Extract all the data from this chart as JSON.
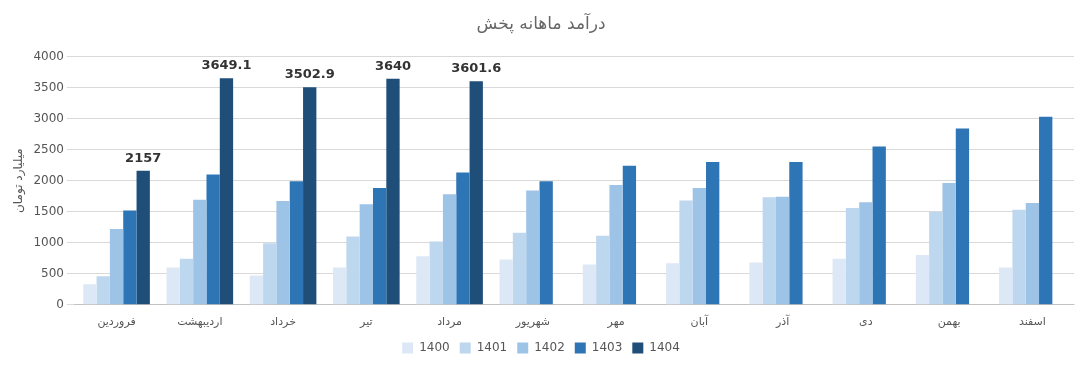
{
  "chart_data": {
    "type": "bar",
    "title": "درآمد ماهانه پخش",
    "ylabel": "میلیارد تومان",
    "categories": [
      "فروردین",
      "اردیبهشت",
      "خرداد",
      "تیر",
      "مرداد",
      "شهریور",
      "مهر",
      "آبان",
      "آذر",
      "دی",
      "بهمن",
      "اسفند"
    ],
    "series": [
      {
        "name": "1400",
        "color": "#dde8f6",
        "values": [
          330,
          600,
          470,
          600,
          780,
          730,
          650,
          670,
          680,
          740,
          800,
          600
        ]
      },
      {
        "name": "1401",
        "color": "#bdd7ee",
        "values": [
          460,
          740,
          990,
          1100,
          1020,
          1160,
          1110,
          1680,
          1730,
          1560,
          1500,
          1530
        ]
      },
      {
        "name": "1402",
        "color": "#9dc3e6",
        "values": [
          1220,
          1690,
          1670,
          1620,
          1780,
          1840,
          1930,
          1880,
          1740,
          1650,
          1960,
          1640
        ]
      },
      {
        "name": "1403",
        "color": "#2e75b6",
        "values": [
          1520,
          2100,
          1990,
          1880,
          2130,
          1990,
          2240,
          2300,
          2300,
          2550,
          2840,
          3030
        ]
      },
      {
        "name": "1404",
        "color": "#1f4e79",
        "values": [
          2157,
          3649.1,
          3502.9,
          3640,
          3601.6,
          null,
          null,
          null,
          null,
          null,
          null,
          null
        ],
        "value_labels": [
          "2157",
          "3649.1",
          "3502.9",
          "3640",
          "3601.6",
          null,
          null,
          null,
          null,
          null,
          null,
          null
        ]
      }
    ],
    "ylim": [
      0,
      4000
    ],
    "yticks": [
      0,
      500,
      1000,
      1500,
      2000,
      2500,
      3000,
      3500,
      4000
    ],
    "grid": "y",
    "legend": "bottom"
  }
}
